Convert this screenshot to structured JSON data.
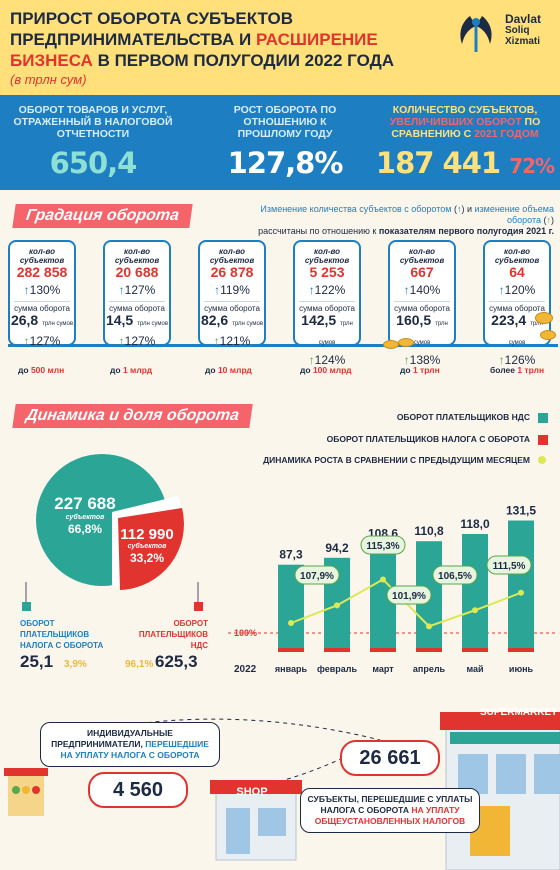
{
  "header": {
    "title_part1": "Прирост оборота субъектов",
    "title_part2": "предпринимательства и",
    "title_part3": "расширение",
    "title_part4": "бизнеса",
    "title_part5": "в первом полугодии 2022 года",
    "subtitle": "(в трлн сум)",
    "logo_line1": "Davlat",
    "logo_line2": "Soliq",
    "logo_line3": "Xizmati"
  },
  "kpis": [
    {
      "label": "Оборот товаров и услуг, отраженный в налоговой отчетности",
      "value": "650,4"
    },
    {
      "label": "Рост оборота по отношению к прошлому году",
      "value": "127,8%"
    },
    {
      "label_a": "Количество субъектов,",
      "label_b": "увеличивших оборот",
      "label_c": "по сравнению с",
      "label_d": "2021 годом",
      "value": "187 441",
      "value2": "72%"
    }
  ],
  "gradation": {
    "title": "Градация оборота",
    "note_a": "Изменение количества субъектов с оборотом",
    "note_b": "и",
    "note_c": "изменение объема оборота",
    "note_d": "рассчитаны по отношению к",
    "note_e": "показателям первого полугодия 2021 г.",
    "card_count_label": "кол-во субъектов",
    "card_sum_label": "сумма оборота",
    "card_unit": "трлн сумов",
    "cards": [
      {
        "count": "282 858",
        "count_pct": "130%",
        "sum": "26,8",
        "sum_pct": "127%"
      },
      {
        "count": "20 688",
        "count_pct": "127%",
        "sum": "14,5",
        "sum_pct": "127%"
      },
      {
        "count": "26 878",
        "count_pct": "119%",
        "sum": "82,6",
        "sum_pct": "121%"
      },
      {
        "count": "5 253",
        "count_pct": "122%",
        "sum": "142,5",
        "sum_pct": "124%"
      },
      {
        "count": "667",
        "count_pct": "140%",
        "sum": "160,5",
        "sum_pct": "138%"
      },
      {
        "count": "64",
        "count_pct": "120%",
        "sum": "223,4",
        "sum_pct": "126%"
      }
    ],
    "ticks": [
      {
        "pre": "до ",
        "val": "500 млн"
      },
      {
        "pre": "до ",
        "val": "1 млрд"
      },
      {
        "pre": "до ",
        "val": "10 млрд"
      },
      {
        "pre": "до ",
        "val": "100 млрд"
      },
      {
        "pre": "до ",
        "val": "1 трлн"
      },
      {
        "pre": "более ",
        "val": "1 трлн"
      }
    ]
  },
  "dynamics": {
    "title": "Динамика и доля оборота",
    "legend": [
      {
        "label": "Оборот плательщиков НДС",
        "color": "#2aa596"
      },
      {
        "label": "Оборот плательщиков налога с оборота",
        "color": "#e2342f"
      },
      {
        "label": "Динамика роста в сравнении с предыдущим месяцем",
        "color": "#dde855"
      }
    ],
    "pie": {
      "green_value": "227 688",
      "green_caption": "субъектов",
      "green_pct": "66,8%",
      "red_value": "112 990",
      "red_caption": "субъектов",
      "red_pct": "33,2%",
      "green_label": "Оборот плательщиков налога с оборота",
      "green_big": "25,1",
      "green_small": "3,9%",
      "red_label": "Оборот плательщиков НДС",
      "red_big": "625,3",
      "red_small": "96,1%"
    },
    "baseline_label": "100%",
    "year_label": "2022"
  },
  "chart_data": {
    "type": "bar",
    "categories": [
      "январь",
      "февраль",
      "март",
      "апрель",
      "май",
      "июнь"
    ],
    "series": [
      {
        "values": [
          87.3,
          94.2,
          108.6,
          110.8,
          118.0,
          131.5
        ]
      },
      {
        "values": [
          null,
          107.9,
          115.3,
          101.9,
          106.5,
          111.5
        ]
      }
    ],
    "value_labels": [
      "87,3",
      "94,2",
      "108,6",
      "110,8",
      "118,0",
      "131,5"
    ],
    "growth_labels": [
      "",
      "107,9%",
      "115,3%",
      "101,9%",
      "106,5%",
      "111,5%"
    ],
    "ylim": [
      0,
      140
    ]
  },
  "bottom": {
    "left_text_a": "Индивидуальные предприниматели,",
    "left_text_b": "перешедшие на уплату налога с оборота",
    "left_value": "4 560",
    "right_text_a": "Субъекты, перешедшие с уплаты налога с оборота",
    "right_text_b": "на уплату общеустановленных налогов",
    "right_value": "26 661",
    "shop_sign": "SHOP",
    "supermarket_sign": "SUPERMARKET"
  },
  "colors": {
    "accent_blue": "#1d7fc1",
    "accent_red": "#e2342f",
    "teal": "#2aa596",
    "yellow": "#f2b637"
  }
}
